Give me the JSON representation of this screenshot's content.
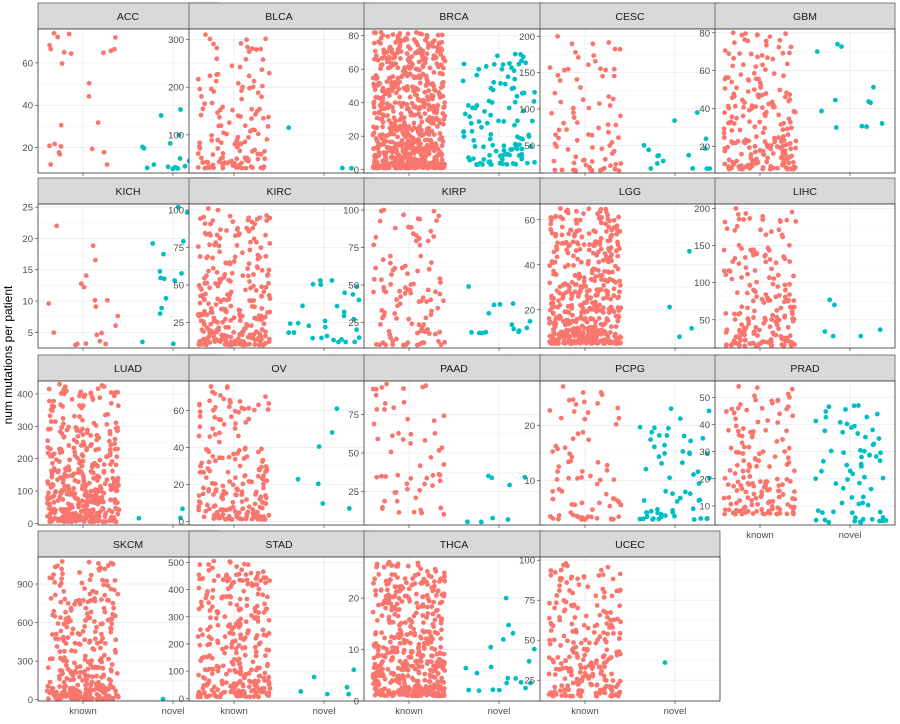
{
  "chart_data": {
    "type": "scatter",
    "subtype": "faceted jitter strip plot",
    "ylabel": "num mutations per patient",
    "xlabel": "",
    "categories": [
      "known",
      "novel"
    ],
    "colors": {
      "known": "#F8766D",
      "novel": "#00BFC4"
    },
    "grid": true,
    "point_counts_note": "approximate number of jittered points per group and their value range",
    "panels": [
      {
        "name": "ACC",
        "yticks": [
          20,
          40,
          60
        ],
        "ylim": [
          8,
          76
        ],
        "known": {
          "n": 25,
          "min": 12,
          "max": 74
        },
        "novel": {
          "n": 15,
          "min": 10,
          "max": 38
        }
      },
      {
        "name": "BLCA",
        "yticks": [
          100,
          200,
          300
        ],
        "ylim": [
          20,
          322
        ],
        "known": {
          "n": 140,
          "min": 30,
          "max": 310
        },
        "novel": {
          "n": 3,
          "min": 30,
          "max": 115
        }
      },
      {
        "name": "BRCA",
        "yticks": [
          0,
          20,
          40,
          60,
          80
        ],
        "ylim": [
          -2,
          84
        ],
        "known": {
          "n": 700,
          "min": 1,
          "max": 82
        },
        "novel": {
          "n": 110,
          "min": 3,
          "max": 69
        }
      },
      {
        "name": "CESC",
        "yticks": [
          50,
          100,
          150,
          200
        ],
        "ylim": [
          12,
          210
        ],
        "known": {
          "n": 85,
          "min": 15,
          "max": 200
        },
        "novel": {
          "n": 15,
          "min": 18,
          "max": 95
        }
      },
      {
        "name": "GBM",
        "yticks": [
          20,
          40,
          60,
          80
        ],
        "ylim": [
          6,
          82
        ],
        "known": {
          "n": 220,
          "min": 8,
          "max": 80
        },
        "novel": {
          "n": 12,
          "min": 30,
          "max": 74
        }
      },
      {
        "name": "KICH",
        "yticks": [
          5,
          10,
          15,
          20,
          25
        ],
        "ylim": [
          2.5,
          25.5
        ],
        "known": {
          "n": 20,
          "min": 3,
          "max": 22
        },
        "novel": {
          "n": 20,
          "min": 3,
          "max": 25
        }
      },
      {
        "name": "KIRC",
        "yticks": [
          25,
          50,
          75,
          100
        ],
        "ylim": [
          8,
          104
        ],
        "known": {
          "n": 280,
          "min": 10,
          "max": 101
        },
        "novel": {
          "n": 30,
          "min": 12,
          "max": 53
        }
      },
      {
        "name": "KIRP",
        "yticks": [
          25,
          50,
          75,
          100
        ],
        "ylim": [
          8,
          104
        ],
        "known": {
          "n": 110,
          "min": 10,
          "max": 100
        },
        "novel": {
          "n": 15,
          "min": 18,
          "max": 49
        }
      },
      {
        "name": "LGG",
        "yticks": [
          20,
          40,
          60
        ],
        "ylim": [
          3,
          67
        ],
        "known": {
          "n": 480,
          "min": 5,
          "max": 65
        },
        "novel": {
          "n": 4,
          "min": 8,
          "max": 46
        }
      },
      {
        "name": "LIHC",
        "yticks": [
          50,
          100,
          150,
          200
        ],
        "ylim": [
          12,
          206
        ],
        "known": {
          "n": 190,
          "min": 15,
          "max": 200
        },
        "novel": {
          "n": 6,
          "min": 28,
          "max": 77
        }
      },
      {
        "name": "LUAD",
        "yticks": [
          0,
          100,
          200,
          300,
          400
        ],
        "ylim": [
          -5,
          440
        ],
        "known": {
          "n": 420,
          "min": 5,
          "max": 430
        },
        "novel": {
          "n": 6,
          "min": 15,
          "max": 45
        }
      },
      {
        "name": "OV",
        "yticks": [
          0,
          20,
          40,
          60
        ],
        "ylim": [
          -2,
          76
        ],
        "known": {
          "n": 200,
          "min": 1,
          "max": 73
        },
        "novel": {
          "n": 7,
          "min": 7,
          "max": 61
        }
      },
      {
        "name": "PAAD",
        "yticks": [
          25,
          50,
          75
        ],
        "ylim": [
          3,
          97
        ],
        "known": {
          "n": 60,
          "min": 10,
          "max": 95
        },
        "novel": {
          "n": 8,
          "min": 5,
          "max": 35
        }
      },
      {
        "name": "PCPG",
        "yticks": [
          10,
          20
        ],
        "ylim": [
          2,
          28
        ],
        "known": {
          "n": 80,
          "min": 3,
          "max": 27
        },
        "novel": {
          "n": 60,
          "min": 3,
          "max": 23
        }
      },
      {
        "name": "PRAD",
        "yticks": [
          10,
          20,
          30,
          40,
          50
        ],
        "ylim": [
          3,
          56
        ],
        "known": {
          "n": 160,
          "min": 7,
          "max": 54
        },
        "novel": {
          "n": 70,
          "min": 4,
          "max": 47
        }
      },
      {
        "name": "SKCM",
        "yticks": [
          0,
          300,
          600,
          900
        ],
        "ylim": [
          -10,
          1110
        ],
        "known": {
          "n": 330,
          "min": 5,
          "max": 1075
        },
        "novel": {
          "n": 1,
          "min": 5,
          "max": 5
        }
      },
      {
        "name": "STAD",
        "yticks": [
          0,
          100,
          200,
          300,
          400,
          500
        ],
        "ylim": [
          -10,
          520
        ],
        "known": {
          "n": 300,
          "min": 5,
          "max": 505
        },
        "novel": {
          "n": 6,
          "min": 15,
          "max": 105
        }
      },
      {
        "name": "THCA",
        "yticks": [
          0,
          10,
          20
        ],
        "ylim": [
          0,
          28
        ],
        "known": {
          "n": 480,
          "min": 1,
          "max": 27
        },
        "novel": {
          "n": 20,
          "min": 2,
          "max": 20
        }
      },
      {
        "name": "UCEC",
        "yticks": [
          25,
          50,
          75,
          100
        ],
        "ylim": [
          12,
          102
        ],
        "known": {
          "n": 240,
          "min": 15,
          "max": 98
        },
        "novel": {
          "n": 1,
          "min": 36,
          "max": 36
        }
      }
    ]
  }
}
